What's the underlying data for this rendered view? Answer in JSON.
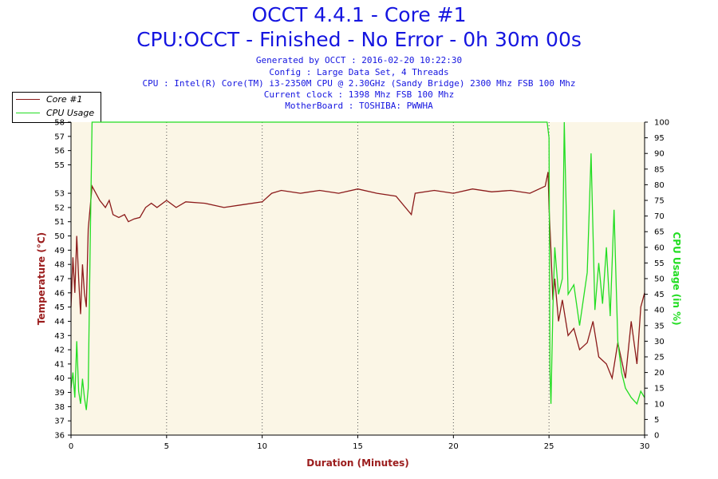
{
  "header": {
    "title": "OCCT 4.4.1 - Core #1",
    "subtitle": "CPU:OCCT - Finished - No Error - 0h 30m 00s",
    "info_lines": [
      "Generated by OCCT : 2016-02-20 10:22:30",
      "Config : Large Data Set, 4 Threads",
      "CPU : Intel(R) Core(TM) i3-2350M CPU @ 2.30GHz (Sandy Bridge) 2300 Mhz FSB 100 Mhz",
      "Current clock : 1398 Mhz FSB 100 Mhz",
      "MotherBoard : TOSHIBA: PWWHA"
    ]
  },
  "colors": {
    "temperature": "#8b1a1a",
    "cpu_usage": "#22dd22",
    "plot_background": "#fbf6e6",
    "title": "#1515e0",
    "axis_label_left": "#9b1c1c",
    "axis_label_right": "#22dd22"
  },
  "chart_data": {
    "type": "line",
    "xlabel": "Duration (Minutes)",
    "ylabel": "Temperature (°C)",
    "y2label": "CPU Usage (in %)",
    "xlim": [
      0,
      30
    ],
    "ylim": [
      36,
      58
    ],
    "y2lim": [
      0,
      100
    ],
    "x_ticks": [
      0,
      5,
      10,
      15,
      20,
      25,
      30
    ],
    "y_ticks": [
      36,
      37,
      38,
      39,
      40,
      41,
      42,
      43,
      44,
      45,
      46,
      47,
      48,
      49,
      50,
      51,
      52,
      53,
      55,
      56,
      57,
      58
    ],
    "y2_ticks": [
      0,
      5,
      10,
      15,
      20,
      25,
      30,
      35,
      40,
      45,
      50,
      55,
      60,
      65,
      70,
      75,
      80,
      85,
      90,
      95,
      100
    ],
    "grid": true,
    "legend_position": "top-left",
    "series": [
      {
        "name": "Core #1",
        "axis": "left",
        "x": [
          0,
          0.1,
          0.2,
          0.3,
          0.4,
          0.5,
          0.6,
          0.7,
          0.8,
          0.9,
          1.0,
          1.1,
          1.3,
          1.5,
          1.8,
          2.0,
          2.2,
          2.5,
          2.8,
          3.0,
          3.3,
          3.6,
          3.9,
          4.2,
          4.5,
          5,
          5.5,
          6,
          7,
          8,
          9,
          10,
          10.5,
          11,
          12,
          13,
          14,
          15,
          16,
          17,
          17.8,
          18,
          19,
          20,
          21,
          22,
          23,
          24,
          24.8,
          24.95,
          25.0,
          25.1,
          25.2,
          25.3,
          25.5,
          25.7,
          26.0,
          26.3,
          26.6,
          27.0,
          27.3,
          27.6,
          28.0,
          28.3,
          28.6,
          29.0,
          29.3,
          29.6,
          29.8,
          30.0
        ],
        "values": [
          45,
          48.5,
          46,
          50,
          47,
          44.5,
          48,
          46,
          45,
          50.5,
          52,
          53.5,
          53,
          52.5,
          52,
          52.5,
          51.5,
          51.3,
          51.5,
          51,
          51.2,
          51.3,
          52,
          52.3,
          52,
          52.5,
          52,
          52.4,
          52.3,
          52,
          52.2,
          52.4,
          53,
          53.2,
          53,
          53.2,
          53,
          53.3,
          53,
          52.8,
          51.5,
          53,
          53.2,
          53,
          53.3,
          53.1,
          53.2,
          53,
          53.5,
          54.5,
          52,
          49,
          45.5,
          47,
          44,
          45.5,
          43,
          43.5,
          42,
          42.5,
          44,
          41.5,
          41,
          40,
          42.5,
          40,
          44,
          41,
          45,
          46
        ]
      },
      {
        "name": "CPU Usage",
        "axis": "right",
        "x": [
          0,
          0.1,
          0.2,
          0.3,
          0.4,
          0.5,
          0.6,
          0.7,
          0.8,
          0.9,
          1.0,
          1.1,
          2,
          5,
          10,
          15,
          20,
          24.8,
          24.9,
          25.0,
          25.05,
          25.1,
          25.2,
          25.3,
          25.5,
          25.7,
          25.8,
          26.0,
          26.3,
          26.6,
          27.0,
          27.2,
          27.4,
          27.6,
          27.8,
          28.0,
          28.2,
          28.4,
          28.6,
          28.8,
          29.0,
          29.3,
          29.6,
          29.8,
          30.0
        ],
        "values": [
          15,
          20,
          12,
          30,
          14,
          10,
          18,
          12,
          8,
          15,
          60,
          100,
          100,
          100,
          100,
          100,
          100,
          100,
          100,
          95,
          20,
          10,
          40,
          60,
          45,
          50,
          100,
          45,
          48,
          35,
          52,
          90,
          40,
          55,
          42,
          60,
          38,
          72,
          30,
          20,
          15,
          12,
          10,
          14,
          12
        ]
      }
    ]
  }
}
